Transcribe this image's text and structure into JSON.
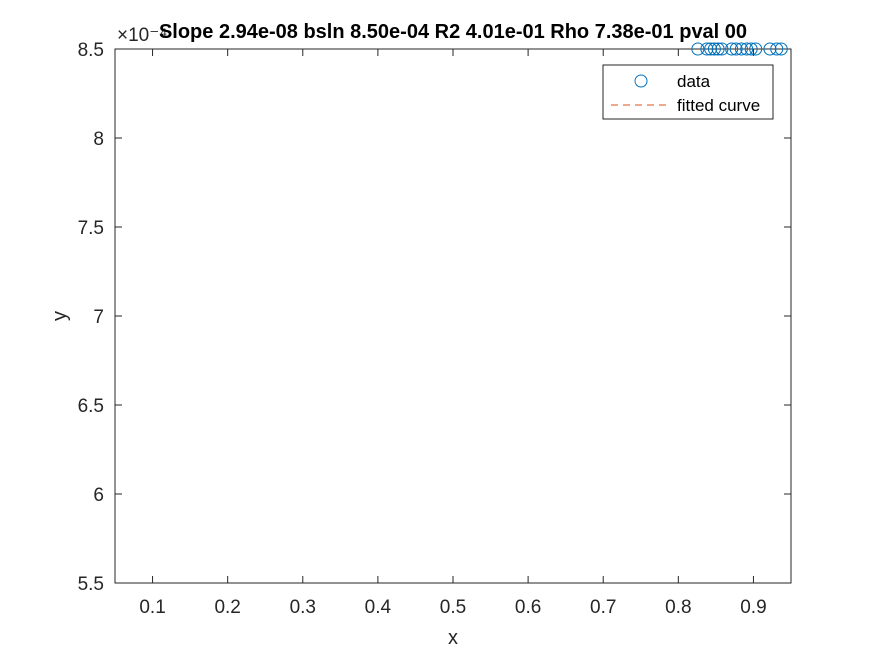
{
  "chart_data": {
    "type": "scatter",
    "title": "Slope 2.94e-08 bsln 8.50e-04 R2 4.01e-01 Rho 7.38e-01 pval 00",
    "xlabel": "x",
    "ylabel": "y",
    "xlim": [
      0.05,
      0.95
    ],
    "ylim": [
      5.5,
      8.5
    ],
    "y_exponent_label": "×10⁻⁴",
    "x_ticks": [
      "0.1",
      "0.2",
      "0.3",
      "0.4",
      "0.5",
      "0.6",
      "0.7",
      "0.8",
      "0.9"
    ],
    "y_ticks": [
      "5.5",
      "6",
      "6.5",
      "7",
      "7.5",
      "8",
      "8.5"
    ],
    "grid": false,
    "legend_position": "top-right",
    "legend": [
      {
        "label": "data",
        "marker": "circle",
        "color": "#0072BD"
      },
      {
        "label": "fitted curve",
        "style": "dashed",
        "color": "#D95319"
      }
    ],
    "series": [
      {
        "name": "data",
        "marker": "circle",
        "color": "#0072BD",
        "x": [
          0.826,
          0.838,
          0.843,
          0.848,
          0.853,
          0.858,
          0.871,
          0.877,
          0.884,
          0.891,
          0.897,
          0.903,
          0.922,
          0.931,
          0.937
        ],
        "y": [
          8.5,
          8.5,
          8.5,
          8.5,
          8.5,
          8.5,
          8.5,
          8.5,
          8.5,
          8.5,
          8.5,
          8.5,
          8.5,
          8.5,
          8.5
        ]
      },
      {
        "name": "fitted curve",
        "line_style": "dashed",
        "color": "#D95319",
        "x": [],
        "y": []
      }
    ]
  }
}
